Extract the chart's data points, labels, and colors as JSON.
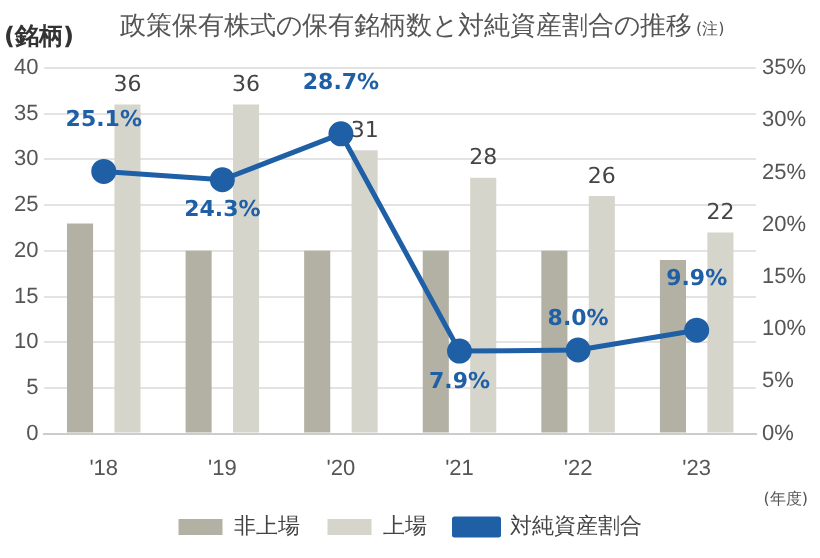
{
  "chart_data": {
    "type": "bar",
    "title": "政策保有株式の保有銘柄数と対純資産割合の推移",
    "ylabel": "(銘柄)",
    "xlabel": "(年度)",
    "annotations": [
      "(注)"
    ],
    "categories": [
      "'18",
      "'19",
      "'20",
      "'21",
      "'22",
      "'23"
    ],
    "series": [
      {
        "name": "非上場",
        "color": "#b3b1a3",
        "values": [
          23,
          20,
          20,
          20,
          20,
          19
        ]
      },
      {
        "name": "上場",
        "color": "#d6d5cc",
        "values": [
          36,
          36,
          31,
          28,
          26,
          22
        ],
        "value_labels": [
          "36",
          "36",
          "31",
          "28",
          "26",
          "22"
        ]
      },
      {
        "name": "対純資産割合",
        "type": "line",
        "axis": "y2",
        "color": "#1f5fa6",
        "marker": "circle",
        "values": [
          25.1,
          24.3,
          28.7,
          7.9,
          8.0,
          9.9
        ],
        "value_labels": [
          "25.1%",
          "24.3%",
          "28.7%",
          "7.9%",
          "8.0%",
          "9.9%"
        ]
      }
    ],
    "ylim": [
      0,
      40
    ],
    "yticks": [
      0,
      5,
      10,
      15,
      20,
      25,
      30,
      35,
      40
    ],
    "y2lim": [
      0,
      35
    ],
    "y2ticks": [
      {
        "value": 0,
        "label": "0%"
      },
      {
        "value": 5,
        "label": "5%"
      },
      {
        "value": 10,
        "label": "10%"
      },
      {
        "value": 15,
        "label": "15%"
      },
      {
        "value": 20,
        "label": "20%"
      },
      {
        "value": 25,
        "label": "25%"
      },
      {
        "value": 30,
        "label": "30%"
      },
      {
        "value": 35,
        "label": "35%"
      }
    ],
    "grid": "y",
    "legend": "bottom"
  }
}
